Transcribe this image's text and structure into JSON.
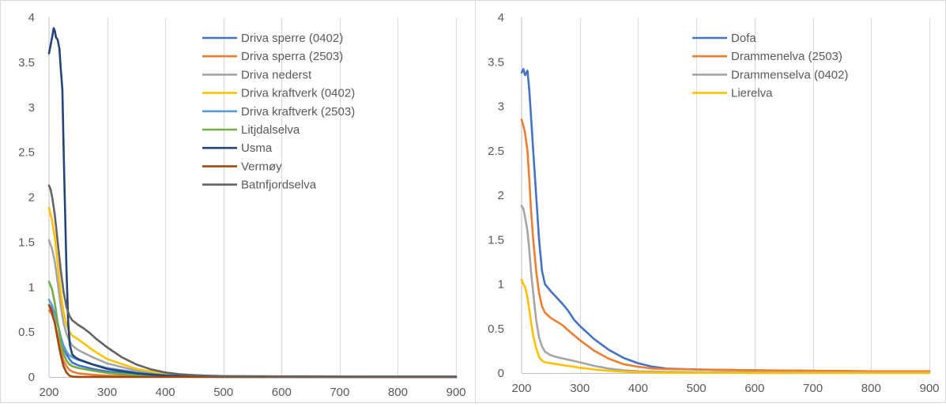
{
  "chart_data": [
    {
      "type": "line",
      "title": "",
      "xlabel": "",
      "ylabel": "",
      "xlim": [
        200,
        900
      ],
      "ylim": [
        0,
        4
      ],
      "x_ticks": [
        "200",
        "300",
        "400",
        "500",
        "600",
        "700",
        "800",
        "900"
      ],
      "y_ticks": [
        "0",
        "0.5",
        "1",
        "1.5",
        "2",
        "2.5",
        "3",
        "3.5",
        "4"
      ],
      "grid": "vertical",
      "legend_position": "top-right",
      "series": [
        {
          "name": "Driva sperre (0402)",
          "color": "#4472C4",
          "x": [
            200,
            205,
            210,
            215,
            220,
            225,
            230,
            235,
            240,
            250,
            275,
            300,
            350,
            400,
            450,
            500,
            900
          ],
          "y": [
            0.8,
            0.76,
            0.7,
            0.6,
            0.45,
            0.33,
            0.25,
            0.2,
            0.16,
            0.13,
            0.09,
            0.06,
            0.03,
            0.015,
            0.008,
            0.004,
            0
          ]
        },
        {
          "name": "Driva sperra (2503)",
          "color": "#ED7D31",
          "x": [
            200,
            205,
            210,
            215,
            220,
            225,
            230,
            235,
            240,
            250,
            275,
            300,
            350,
            400,
            450,
            900
          ],
          "y": [
            0.74,
            0.7,
            0.6,
            0.45,
            0.3,
            0.18,
            0.12,
            0.08,
            0.06,
            0.04,
            0.025,
            0.015,
            0.008,
            0.004,
            0.002,
            0
          ]
        },
        {
          "name": "Driva nederst",
          "color": "#A5A5A5",
          "x": [
            200,
            205,
            210,
            215,
            220,
            225,
            230,
            235,
            240,
            250,
            275,
            300,
            350,
            400,
            450,
            500,
            900
          ],
          "y": [
            1.52,
            1.43,
            1.28,
            1.05,
            0.8,
            0.6,
            0.48,
            0.4,
            0.35,
            0.3,
            0.22,
            0.15,
            0.07,
            0.03,
            0.012,
            0.005,
            0
          ]
        },
        {
          "name": "Driva kraftverk (0402)",
          "color": "#FFC000",
          "x": [
            200,
            205,
            210,
            215,
            220,
            225,
            230,
            235,
            240,
            250,
            275,
            300,
            350,
            400,
            450,
            500,
            900
          ],
          "y": [
            1.88,
            1.75,
            1.55,
            1.25,
            0.95,
            0.72,
            0.58,
            0.5,
            0.46,
            0.42,
            0.3,
            0.2,
            0.09,
            0.035,
            0.012,
            0.004,
            0
          ]
        },
        {
          "name": "Driva kraftverk (2503)",
          "color": "#5B9BD5",
          "x": [
            200,
            205,
            210,
            215,
            220,
            225,
            230,
            235,
            240,
            250,
            275,
            300,
            350,
            400,
            450,
            500,
            900
          ],
          "y": [
            0.86,
            0.8,
            0.7,
            0.58,
            0.45,
            0.35,
            0.28,
            0.24,
            0.22,
            0.19,
            0.14,
            0.1,
            0.05,
            0.02,
            0.008,
            0.003,
            0
          ]
        },
        {
          "name": "Litjdalselva",
          "color": "#70AD47",
          "x": [
            200,
            205,
            210,
            215,
            220,
            225,
            230,
            235,
            240,
            250,
            275,
            300,
            350,
            400,
            450,
            900
          ],
          "y": [
            1.06,
            0.98,
            0.82,
            0.6,
            0.4,
            0.26,
            0.18,
            0.14,
            0.12,
            0.1,
            0.07,
            0.045,
            0.02,
            0.008,
            0.003,
            0
          ]
        },
        {
          "name": "Usma",
          "color": "#264478",
          "x": [
            200,
            203,
            206,
            208,
            210,
            212,
            215,
            218,
            220,
            223,
            226,
            230,
            233,
            236,
            240,
            245,
            250,
            275,
            300,
            350,
            400,
            450,
            500,
            900
          ],
          "y": [
            3.6,
            3.7,
            3.8,
            3.88,
            3.85,
            3.78,
            3.75,
            3.65,
            3.45,
            3.2,
            2.3,
            1.2,
            0.6,
            0.35,
            0.25,
            0.22,
            0.2,
            0.14,
            0.09,
            0.04,
            0.015,
            0.005,
            0.002,
            0
          ]
        },
        {
          "name": "Vermøy",
          "color": "#9E480E",
          "x": [
            200,
            205,
            210,
            215,
            220,
            225,
            230,
            235,
            240,
            250,
            300,
            900
          ],
          "y": [
            0.8,
            0.72,
            0.6,
            0.42,
            0.25,
            0.12,
            0.05,
            0.015,
            0.004,
            0.001,
            0,
            0
          ]
        },
        {
          "name": "Batnfjordselva",
          "color": "#636363",
          "x": [
            200,
            203,
            206,
            210,
            215,
            220,
            225,
            230,
            235,
            240,
            250,
            260,
            270,
            280,
            300,
            325,
            350,
            375,
            400,
            425,
            450,
            475,
            500,
            550,
            600,
            700,
            800,
            900
          ],
          "y": [
            2.13,
            2.08,
            1.98,
            1.8,
            1.5,
            1.2,
            0.95,
            0.78,
            0.68,
            0.63,
            0.58,
            0.54,
            0.49,
            0.43,
            0.33,
            0.22,
            0.14,
            0.085,
            0.05,
            0.03,
            0.02,
            0.014,
            0.01,
            0.008,
            0.006,
            0.005,
            0.005,
            0.005
          ]
        }
      ]
    },
    {
      "type": "line",
      "title": "",
      "xlabel": "",
      "ylabel": "",
      "xlim": [
        200,
        900
      ],
      "ylim": [
        0,
        4
      ],
      "x_ticks": [
        "200",
        "300",
        "400",
        "500",
        "600",
        "700",
        "800",
        "900"
      ],
      "y_ticks": [
        "0",
        "0.5",
        "1",
        "1.5",
        "2",
        "2.5",
        "3",
        "3.5",
        "4"
      ],
      "grid": "vertical",
      "legend_position": "top-center",
      "series": [
        {
          "name": "Dofa",
          "color": "#4472C4",
          "x": [
            200,
            203,
            206,
            210,
            213,
            216,
            220,
            225,
            230,
            235,
            240,
            250,
            260,
            270,
            280,
            290,
            300,
            325,
            350,
            375,
            400,
            425,
            450,
            500,
            550,
            600,
            700,
            800,
            900
          ],
          "y": [
            3.38,
            3.42,
            3.35,
            3.4,
            3.2,
            2.9,
            2.5,
            2.0,
            1.5,
            1.15,
            1.0,
            0.92,
            0.85,
            0.78,
            0.7,
            0.6,
            0.53,
            0.38,
            0.26,
            0.17,
            0.11,
            0.07,
            0.05,
            0.04,
            0.035,
            0.03,
            0.025,
            0.02,
            0.02
          ]
        },
        {
          "name": "Drammenelva (2503)",
          "color": "#ED7D31",
          "x": [
            200,
            203,
            206,
            210,
            213,
            216,
            220,
            225,
            230,
            235,
            240,
            250,
            260,
            270,
            280,
            300,
            325,
            350,
            375,
            400,
            425,
            450,
            500,
            550,
            600,
            700,
            800,
            900
          ],
          "y": [
            2.85,
            2.78,
            2.7,
            2.5,
            2.2,
            1.85,
            1.5,
            1.15,
            0.9,
            0.75,
            0.68,
            0.62,
            0.58,
            0.54,
            0.48,
            0.37,
            0.25,
            0.16,
            0.1,
            0.07,
            0.05,
            0.045,
            0.04,
            0.035,
            0.03,
            0.025,
            0.02,
            0.02
          ]
        },
        {
          "name": "Drammenselva (0402)",
          "color": "#A5A5A5",
          "x": [
            200,
            203,
            206,
            210,
            213,
            216,
            220,
            225,
            230,
            235,
            240,
            250,
            260,
            280,
            300,
            325,
            350,
            375,
            400,
            450,
            500,
            600,
            700,
            800,
            900
          ],
          "y": [
            1.88,
            1.85,
            1.75,
            1.6,
            1.4,
            1.15,
            0.9,
            0.6,
            0.4,
            0.3,
            0.24,
            0.2,
            0.18,
            0.15,
            0.12,
            0.08,
            0.05,
            0.03,
            0.02,
            0.012,
            0.01,
            0.008,
            0.007,
            0.006,
            0.006
          ]
        },
        {
          "name": "Lierelva",
          "color": "#FFC000",
          "x": [
            200,
            203,
            206,
            210,
            213,
            216,
            220,
            225,
            230,
            235,
            240,
            250,
            260,
            280,
            300,
            325,
            350,
            375,
            400,
            450,
            500,
            600,
            700,
            800,
            900
          ],
          "y": [
            1.05,
            1.0,
            0.97,
            0.85,
            0.72,
            0.58,
            0.42,
            0.28,
            0.18,
            0.14,
            0.12,
            0.11,
            0.1,
            0.08,
            0.06,
            0.04,
            0.025,
            0.015,
            0.01,
            0.005,
            0.003,
            0.002,
            0.002,
            0.002,
            0.002
          ]
        }
      ]
    }
  ]
}
